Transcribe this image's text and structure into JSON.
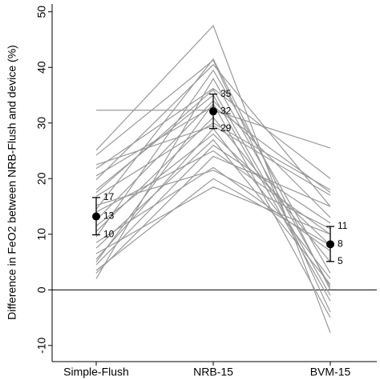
{
  "chart_data": {
    "type": "line",
    "y_label": "Difference in FeO2 between NRB-Flush and device (%)",
    "categories": [
      "Simple-Flush",
      "NRB-15",
      "BVM-15"
    ],
    "ylim": [
      -12.9,
      51.4
    ],
    "yticks": [
      -10,
      0,
      10,
      20,
      30,
      40,
      50
    ],
    "reference_line": 0,
    "line_color": "#999999",
    "series": [
      {
        "values": [
          32.3,
          32.3,
          25.5
        ]
      },
      {
        "values": [
          25.1,
          47.5,
          -7.7
        ]
      },
      {
        "values": [
          24.2,
          41.3,
          -4
        ]
      },
      {
        "values": [
          21.8,
          36.2,
          20
        ]
      },
      {
        "values": [
          20.5,
          33,
          17.5
        ]
      },
      {
        "values": [
          19.8,
          40.5,
          15
        ]
      },
      {
        "values": [
          18,
          35,
          -2
        ]
      },
      {
        "values": [
          16.8,
          30,
          18
        ]
      },
      {
        "values": [
          15.2,
          21.5,
          11
        ]
      },
      {
        "values": [
          14.5,
          41.5,
          0
        ]
      },
      {
        "values": [
          14,
          25,
          10
        ]
      },
      {
        "values": [
          12.5,
          34,
          13
        ]
      },
      {
        "values": [
          11.5,
          28,
          8
        ]
      },
      {
        "values": [
          10.5,
          31,
          5
        ]
      },
      {
        "values": [
          9.5,
          39.5,
          3
        ]
      },
      {
        "values": [
          8.5,
          22,
          7
        ]
      },
      {
        "values": [
          7.5,
          27,
          1
        ]
      },
      {
        "values": [
          6.5,
          18.5,
          10
        ]
      },
      {
        "values": [
          5.5,
          29,
          2
        ]
      },
      {
        "values": [
          5,
          33.5,
          -5
        ]
      },
      {
        "values": [
          4.5,
          26,
          12
        ]
      },
      {
        "values": [
          3.5,
          20,
          8
        ]
      },
      {
        "values": [
          3,
          24,
          15
        ]
      },
      {
        "values": [
          2,
          38,
          0.5
        ]
      },
      {
        "values": [
          22.5,
          29.5,
          17
        ]
      },
      {
        "values": [
          17.5,
          36,
          -1
        ]
      }
    ],
    "summary": {
      "color": "#000000",
      "values": [
        13.2,
        32.1,
        8.2
      ],
      "value_labels": [
        "13",
        "32",
        "8"
      ],
      "upper": [
        16.6,
        35.2,
        11.4
      ],
      "upper_labels": [
        "17",
        "35",
        "11"
      ],
      "lower": [
        9.9,
        29,
        5.1
      ],
      "lower_labels": [
        "10",
        "29",
        "5"
      ]
    }
  }
}
